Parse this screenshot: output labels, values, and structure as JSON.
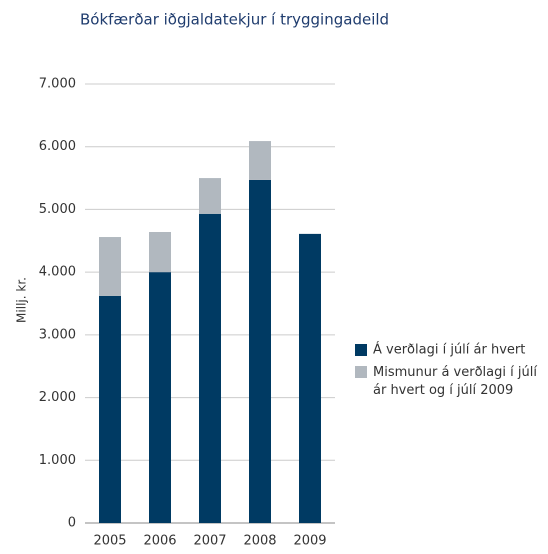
{
  "chart_data": {
    "type": "stacked-bar",
    "title": "Bókfærðar iðgjaldatekjur í tryggingadeild",
    "y_label": "Millj. kr.",
    "categories": [
      "2005",
      "2006",
      "2007",
      "2008",
      "2009"
    ],
    "series": [
      {
        "name": "Á verðlagi í júlí ár hvert",
        "color": "#003a63",
        "values": [
          3620,
          4000,
          4930,
          5470,
          4610
        ]
      },
      {
        "name": "Mismunur á verðlagi í júlí ár hvert og í júlí 2009",
        "color": "#b1b8bf",
        "values": [
          940,
          640,
          570,
          620,
          0
        ]
      }
    ],
    "ylim": [
      0,
      7000
    ],
    "yticks": [
      0,
      {
        "value": 1000,
        "label": "1.000"
      },
      {
        "value": 2000,
        "label": "2.000"
      },
      {
        "value": 3000,
        "label": "3.000"
      },
      {
        "value": 4000,
        "label": "4.000"
      },
      {
        "value": 5000,
        "label": "5.000"
      },
      {
        "value": 6000,
        "label": "6.000"
      },
      {
        "value": 7000,
        "label": "7.000"
      }
    ],
    "grid": true,
    "legend": "right"
  }
}
